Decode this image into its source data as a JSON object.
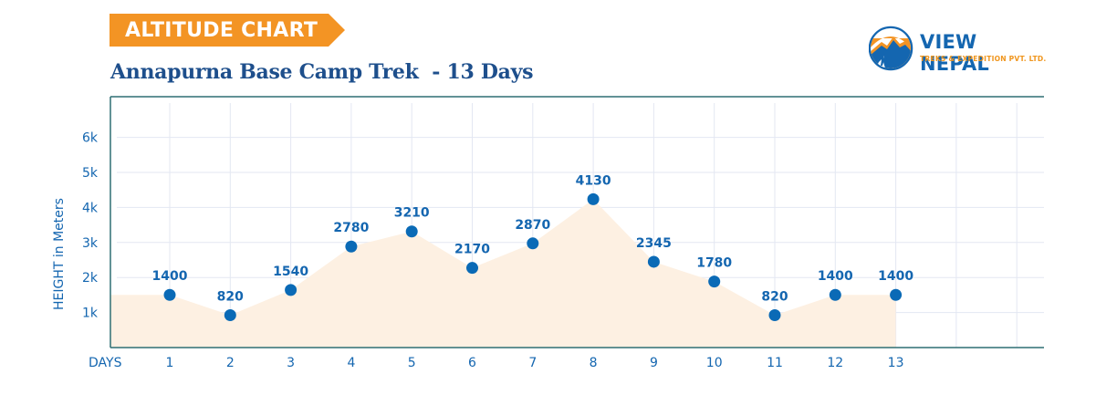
{
  "header": {
    "badge_label": "ALTITUDE CHART",
    "title": "Annapurna Base Camp Trek  - 13 Days",
    "badge_color": "#f39424",
    "title_color": "#1e4f8c"
  },
  "logo": {
    "name": "VIEW NEPAL",
    "tagline": "TREKS & EXPEDITION PVT. LTD.",
    "icon": "mountain-hiker-icon"
  },
  "chart_data": {
    "type": "area",
    "title": "Annapurna Base Camp Trek - 13 Days",
    "xlabel": "DAYS",
    "ylabel": "HEIGHT in Meters",
    "categories": [
      "1",
      "2",
      "3",
      "4",
      "5",
      "6",
      "7",
      "8",
      "9",
      "10",
      "11",
      "12",
      "13"
    ],
    "x": [
      1,
      2,
      3,
      4,
      5,
      6,
      7,
      8,
      9,
      10,
      11,
      12,
      13
    ],
    "values": [
      1400,
      820,
      1540,
      2780,
      3210,
      2170,
      2870,
      4130,
      2345,
      1780,
      820,
      1400,
      1400
    ],
    "data_labels": [
      "1400",
      "820",
      "1540",
      "2780",
      "3210",
      "2170",
      "2870",
      "4130",
      "2345",
      "1780",
      "820",
      "1400",
      "1400"
    ],
    "y_ticks": [
      "1k",
      "2k",
      "3k",
      "4k",
      "5k",
      "6k"
    ],
    "y_tick_values": [
      1000,
      2000,
      3000,
      4000,
      5000,
      6000
    ],
    "ylim": [
      0,
      7000
    ],
    "xlim": [
      0,
      15
    ],
    "grid": true,
    "legend": "none",
    "colors": {
      "marker": "#0a6ab6",
      "area_fill": "#fdf0e2",
      "grid": "#e3e7f2",
      "axis": "#2f6f73",
      "labels": "#1466b0"
    }
  }
}
